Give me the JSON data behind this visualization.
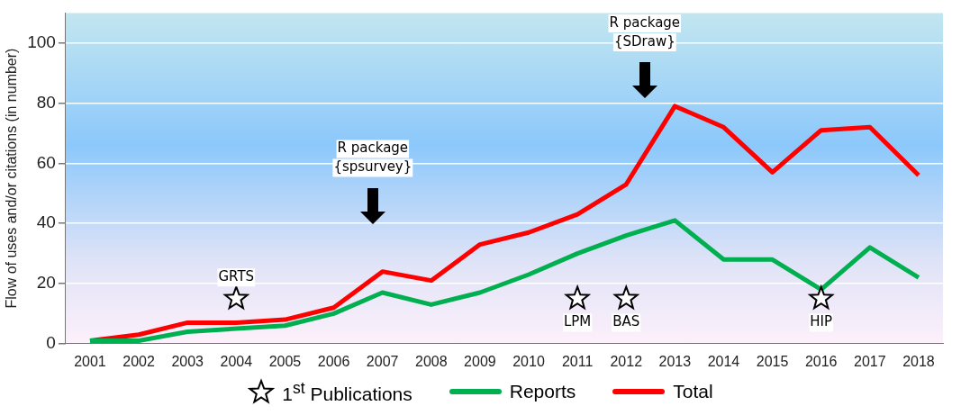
{
  "chart_data": {
    "type": "line",
    "ylabel": "Flow of uses and/or citations (in number)",
    "categories": [
      "2001",
      "2002",
      "2003",
      "2004",
      "2005",
      "2006",
      "2007",
      "2008",
      "2009",
      "2010",
      "2011",
      "2012",
      "2013",
      "2014",
      "2015",
      "2016",
      "2017",
      "2018"
    ],
    "series": [
      {
        "name": "1$^{st}$ Publications",
        "type": "scatter",
        "marker": "star",
        "color": "#ffffff",
        "values": [
          null,
          null,
          null,
          15,
          null,
          null,
          null,
          null,
          null,
          null,
          15,
          15,
          null,
          null,
          null,
          15,
          null,
          null
        ]
      },
      {
        "name": "Reports",
        "color": "#00b050",
        "values": [
          1,
          1,
          4,
          5,
          6,
          10,
          17,
          13,
          17,
          23,
          30,
          36,
          41,
          28,
          28,
          18,
          32,
          22
        ]
      },
      {
        "name": "Total",
        "color": "#ff0000",
        "values": [
          1,
          3,
          7,
          7,
          8,
          12,
          24,
          21,
          33,
          37,
          43,
          53,
          79,
          72,
          57,
          71,
          72,
          56
        ]
      }
    ],
    "ylim": [
      0,
      110
    ],
    "yticks": [
      0,
      20,
      40,
      60,
      80,
      100
    ],
    "grid": "y",
    "legend": "bottom",
    "line_style": "solid",
    "annotations": [
      {
        "text": "GRTS",
        "x": "2004",
        "y": 22
      },
      {
        "text": "LPM",
        "x": "2011",
        "y": 7
      },
      {
        "text": "BAS",
        "x": "2012",
        "y": 7
      },
      {
        "text": "HIP",
        "x": "2016",
        "y": 7
      },
      "R package\n{spsurvey}",
      "R package\n{SDraw}"
    ]
  }
}
